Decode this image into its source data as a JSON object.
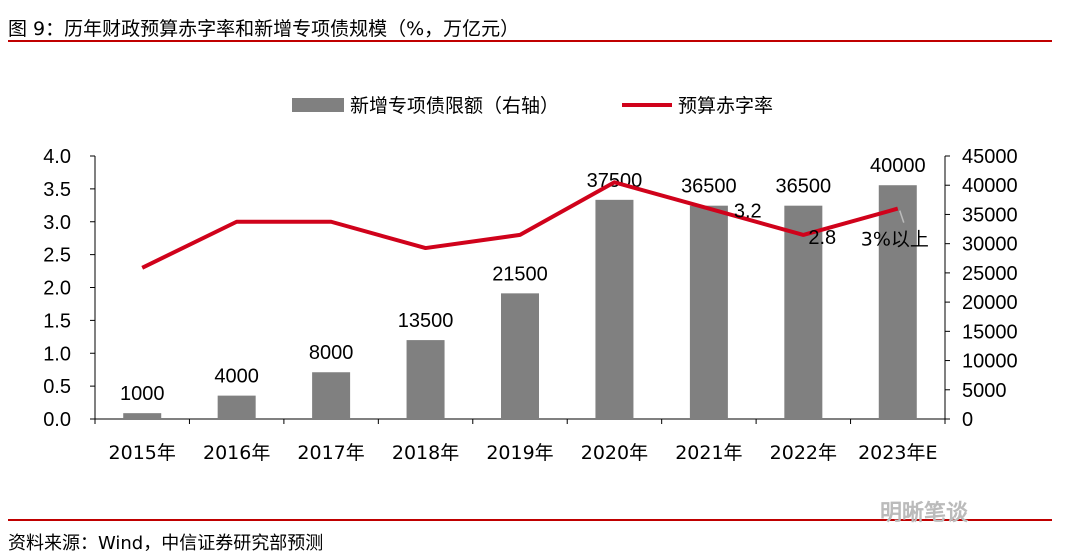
{
  "header": {
    "title": "图 9：历年财政预算赤字率和新增专项债规模（%，万亿元）"
  },
  "footer": {
    "source": "资料来源：Wind，中信证券研究部预测",
    "watermark": "明晰笔谈"
  },
  "chart_data": {
    "type": "bar+line",
    "categories": [
      "2015年",
      "2016年",
      "2017年",
      "2018年",
      "2019年",
      "2020年",
      "2021年",
      "2022年",
      "2023年E"
    ],
    "series": [
      {
        "name": "新增专项债限额（右轴）",
        "type": "bar",
        "axis": "right",
        "color": "#808080",
        "values": [
          1000,
          4000,
          8000,
          13500,
          21500,
          37500,
          36500,
          36500,
          40000
        ],
        "labels": [
          "1000",
          "4000",
          "8000",
          "13500",
          "21500",
          "37500",
          "36500",
          "36500",
          "40000"
        ]
      },
      {
        "name": "预算赤字率",
        "type": "line",
        "axis": "left",
        "color": "#d0021b",
        "values": [
          2.3,
          3.0,
          3.0,
          2.6,
          2.8,
          3.6,
          3.2,
          2.8,
          3.2
        ]
      }
    ],
    "annotations": [
      {
        "category": "2021年",
        "text": "3.2"
      },
      {
        "category": "2022年",
        "text": "2.8"
      },
      {
        "category": "2023年E",
        "text": "3%以上"
      }
    ],
    "left_axis": {
      "range": [
        0,
        4.0
      ],
      "ticks": [
        "0.0",
        "0.5",
        "1.0",
        "1.5",
        "2.0",
        "2.5",
        "3.0",
        "3.5",
        "4.0"
      ]
    },
    "right_axis": {
      "range": [
        0,
        45000
      ],
      "ticks": [
        "0",
        "5000",
        "10000",
        "15000",
        "20000",
        "25000",
        "30000",
        "35000",
        "40000",
        "45000"
      ]
    },
    "legend": "top-center",
    "grid": false
  }
}
